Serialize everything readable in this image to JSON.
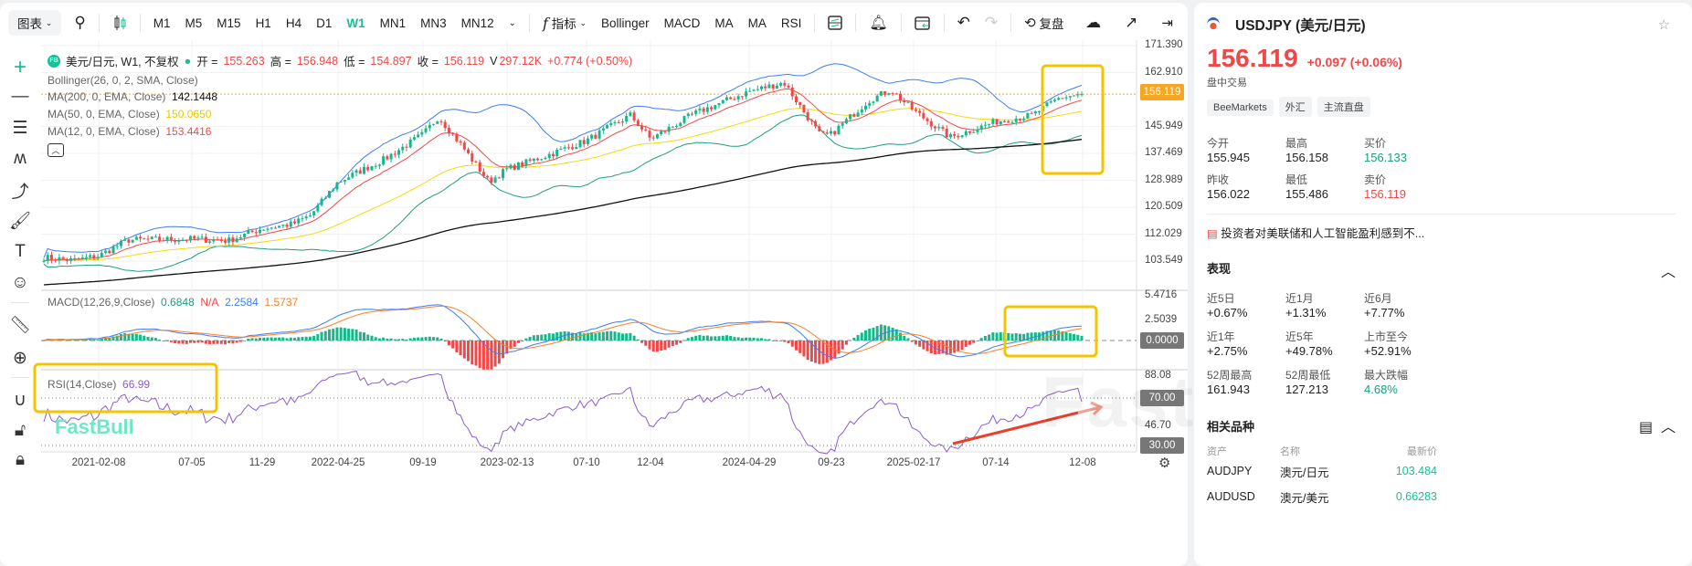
{
  "toolbar": {
    "chart_label": "图表",
    "timeframes": [
      "M1",
      "M5",
      "M15",
      "H1",
      "H4",
      "D1",
      "W1",
      "MN1",
      "MN3",
      "MN12"
    ],
    "active_timeframe": "W1",
    "indicators_label": "指标",
    "indicator_shortcuts": [
      "Bollinger",
      "MACD",
      "MA",
      "MA",
      "RSI"
    ],
    "replay_label": "复盘"
  },
  "legend": {
    "symbol_badge": "FB",
    "title": "美元/日元, W1, 不复权",
    "open_label": "开 =",
    "open": "155.263",
    "high_label": "高 =",
    "high": "156.948",
    "low_label": "低 =",
    "low": "154.897",
    "close_label": "收 =",
    "close": "156.119",
    "volume_label": "V",
    "volume": "297.12K",
    "change": "+0.774 (+0.50%)",
    "bollinger": "Bollinger(26, 0, 2, SMA, Close)",
    "ma200": "MA(200, 0, EMA, Close)",
    "ma200_value": "142.1448",
    "ma50": "MA(50, 0, EMA, Close)",
    "ma50_value": "150.0650",
    "ma12": "MA(12, 0, EMA, Close)",
    "ma12_value": "153.4416",
    "macd": "MACD(12,26,9,Close)",
    "macd_hist": "0.6848",
    "macd_na": "N/A",
    "macd_dif": "2.2584",
    "macd_dea": "1.5737",
    "rsi": "RSI(14,Close)",
    "rsi_value": "66.99"
  },
  "price_axis": [
    "171.390",
    "162.910",
    "145.949",
    "137.469",
    "128.989",
    "120.509",
    "112.029",
    "103.549"
  ],
  "current_price_tag": "156.119",
  "macd_axis": [
    "5.4716",
    "2.5039"
  ],
  "macd_zero_tag": "0.0000",
  "rsi_axis": [
    "88.08",
    "46.70"
  ],
  "rsi_tags": [
    "70.00",
    "30.00"
  ],
  "x_axis": [
    "2021-02-08",
    "07-05",
    "11-29",
    "2022-04-25",
    "09-19",
    "2023-02-13",
    "07-10",
    "12-04",
    "2024-04-29",
    "09-23",
    "2025-02-17",
    "07-14",
    "12-08"
  ],
  "watermark": "FastBull",
  "colors": {
    "up": "#14b88a",
    "down": "#f04848",
    "ma12": "#f04848",
    "ma50": "#f5d90a",
    "ma200": "#111111",
    "boll_upper": "#3f7cf5",
    "boll_lower": "#1a9e82",
    "macd_dif": "#3f7cf5",
    "macd_dea": "#f5812a",
    "rsi": "#8a5cd0",
    "highlight": "#f5c400",
    "accent": "#14c296"
  },
  "chart_data": {
    "type": "candlestick",
    "price_ylim": [
      100.5,
      173
    ],
    "closes_keypoints": [
      [
        "2020-10",
        104.8
      ],
      [
        "2020-12",
        103.8
      ],
      [
        "2021-02-08",
        105.2
      ],
      [
        "2021-04",
        110.2
      ],
      [
        "2021-07-05",
        110.5
      ],
      [
        "2021-09",
        110
      ],
      [
        "2021-11-29",
        113.8
      ],
      [
        "2022-02",
        115.2
      ],
      [
        "2022-03",
        118
      ],
      [
        "2022-04-25",
        128.5
      ],
      [
        "2022-06",
        135.5
      ],
      [
        "2022-09-19",
        143.5
      ],
      [
        "2022-10",
        149
      ],
      [
        "2022-11",
        140
      ],
      [
        "2023-01",
        128.5
      ],
      [
        "2023-02-13",
        132.5
      ],
      [
        "2023-05",
        137
      ],
      [
        "2023-07-10",
        141.5
      ],
      [
        "2023-10",
        149.5
      ],
      [
        "2023-12-04",
        142
      ],
      [
        "2024-02",
        150
      ],
      [
        "2024-04-29",
        157
      ],
      [
        "2024-06",
        159.8
      ],
      [
        "2024-08",
        143
      ],
      [
        "2024-09-23",
        143.5
      ],
      [
        "2024-11",
        154
      ],
      [
        "2025-01",
        157.5
      ],
      [
        "2025-02-17",
        151
      ],
      [
        "2025-04",
        142.5
      ],
      [
        "2025-07-14",
        147.5
      ],
      [
        "2025-10",
        149.5
      ],
      [
        "2025-11",
        155
      ],
      [
        "2025-12-08",
        156.119
      ]
    ],
    "macd_ylim": [
      -4,
      6
    ],
    "rsi_ylim": [
      22,
      92
    ]
  }
}
